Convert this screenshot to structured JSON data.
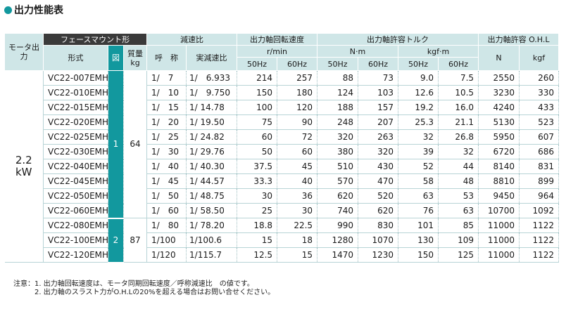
{
  "title": "出力性能表",
  "headers": {
    "motor_output": "モータ出力",
    "flange_mount": "フェースマウント形",
    "model": "形式",
    "figure": "図",
    "mass": "質量",
    "mass_unit": "kg",
    "reduction_ratio": "減速比",
    "nominal": "呼　称",
    "actual_ratio": "実減速比",
    "output_speed": "出力軸回転速度",
    "speed_unit": "r/min",
    "allowable_torque": "出力軸許容トルク",
    "torque_unit_nm": "N·m",
    "torque_unit_kgf": "kgf·m",
    "ohl": "出力軸許容 O.H.L",
    "ohl_unit_n": "N",
    "ohl_unit_kgf": "kgf",
    "hz50": "50Hz",
    "hz60": "60Hz"
  },
  "motor": {
    "value": "2.2",
    "unit": "kW"
  },
  "groups": [
    {
      "figure": "1",
      "mass": "64",
      "span": 10
    },
    {
      "figure": "2",
      "mass": "87",
      "span": 3
    }
  ],
  "rows": [
    {
      "model": "VC22-007EMH",
      "nominal": "1/　7",
      "actual": "1/　6.933",
      "rpm50": "214",
      "rpm60": "257",
      "nm50": "88",
      "nm60": "73",
      "kgf50": "9.0",
      "kgf60": "7.5",
      "ohl_n": "2550",
      "ohl_kgf": "260"
    },
    {
      "model": "VC22-010EMH",
      "nominal": "1/　10",
      "actual": "1/　9.750",
      "rpm50": "150",
      "rpm60": "180",
      "nm50": "124",
      "nm60": "103",
      "kgf50": "12.6",
      "kgf60": "10.5",
      "ohl_n": "3230",
      "ohl_kgf": "330"
    },
    {
      "model": "VC22-015EMH",
      "nominal": "1/　15",
      "actual": "1/ 14.78",
      "rpm50": "100",
      "rpm60": "120",
      "nm50": "188",
      "nm60": "157",
      "kgf50": "19.2",
      "kgf60": "16.0",
      "ohl_n": "4240",
      "ohl_kgf": "433"
    },
    {
      "model": "VC22-020EMH",
      "nominal": "1/　20",
      "actual": "1/ 19.50",
      "rpm50": "75",
      "rpm60": "90",
      "nm50": "248",
      "nm60": "207",
      "kgf50": "25.3",
      "kgf60": "21.1",
      "ohl_n": "5130",
      "ohl_kgf": "523"
    },
    {
      "model": "VC22-025EMH",
      "nominal": "1/　25",
      "actual": "1/ 24.82",
      "rpm50": "60",
      "rpm60": "72",
      "nm50": "320",
      "nm60": "263",
      "kgf50": "32",
      "kgf60": "26.8",
      "ohl_n": "5950",
      "ohl_kgf": "607"
    },
    {
      "model": "VC22-030EMH",
      "nominal": "1/　30",
      "actual": "1/ 29.76",
      "rpm50": "50",
      "rpm60": "60",
      "nm50": "380",
      "nm60": "320",
      "kgf50": "39",
      "kgf60": "32",
      "ohl_n": "6720",
      "ohl_kgf": "686"
    },
    {
      "model": "VC22-040EMH",
      "nominal": "1/　40",
      "actual": "1/ 40.30",
      "rpm50": "37.5",
      "rpm60": "45",
      "nm50": "510",
      "nm60": "430",
      "kgf50": "52",
      "kgf60": "44",
      "ohl_n": "8140",
      "ohl_kgf": "831"
    },
    {
      "model": "VC22-045EMH",
      "nominal": "1/　45",
      "actual": "1/ 44.57",
      "rpm50": "33.3",
      "rpm60": "40",
      "nm50": "570",
      "nm60": "470",
      "kgf50": "58",
      "kgf60": "48",
      "ohl_n": "8810",
      "ohl_kgf": "899"
    },
    {
      "model": "VC22-050EMH",
      "nominal": "1/　50",
      "actual": "1/ 48.75",
      "rpm50": "30",
      "rpm60": "36",
      "nm50": "620",
      "nm60": "520",
      "kgf50": "63",
      "kgf60": "53",
      "ohl_n": "9450",
      "ohl_kgf": "964"
    },
    {
      "model": "VC22-060EMH",
      "nominal": "1/　60",
      "actual": "1/ 58.50",
      "rpm50": "25",
      "rpm60": "30",
      "nm50": "740",
      "nm60": "620",
      "kgf50": "76",
      "kgf60": "63",
      "ohl_n": "10700",
      "ohl_kgf": "1092"
    },
    {
      "model": "VC22-080EMH",
      "nominal": "1/　80",
      "actual": "1/ 78.20",
      "rpm50": "18.8",
      "rpm60": "22.5",
      "nm50": "990",
      "nm60": "830",
      "kgf50": "101",
      "kgf60": "85",
      "ohl_n": "11000",
      "ohl_kgf": "1122"
    },
    {
      "model": "VC22-100EMH",
      "nominal": "1/100",
      "actual": "1/100.6",
      "rpm50": "15",
      "rpm60": "18",
      "nm50": "1280",
      "nm60": "1070",
      "kgf50": "130",
      "kgf60": "109",
      "ohl_n": "11000",
      "ohl_kgf": "1122"
    },
    {
      "model": "VC22-120EMH",
      "nominal": "1/120",
      "actual": "1/115.7",
      "rpm50": "12.5",
      "rpm60": "15",
      "nm50": "1470",
      "nm60": "1230",
      "kgf50": "150",
      "kgf60": "125",
      "ohl_n": "11000",
      "ohl_kgf": "1122"
    }
  ],
  "notes": [
    "注意：1. 出力軸回転速度は、モータ同期回転速度／呼称減速比　の値です。",
    "　　　2. 出力軸のスラスト力がO.H.Lの20%を超える場合はお問い合せください。"
  ],
  "colors": {
    "accent": "#12989e",
    "header_bg": "#cfe6e7",
    "dark_header": "#3a3a3a"
  }
}
